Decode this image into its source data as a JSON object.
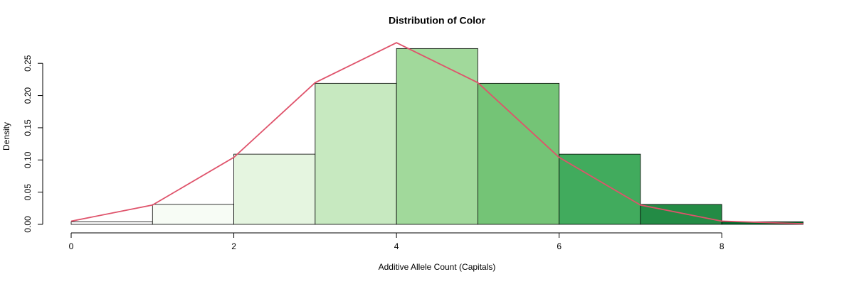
{
  "chart_data": {
    "type": "histogram",
    "title": "Distribution of Color",
    "x_label": "Additive Allele Count (Capitals)",
    "y_label": "Density",
    "bins": [
      0,
      1,
      2,
      3,
      4,
      5,
      6,
      7,
      8,
      9
    ],
    "values": [
      0.004,
      0.031,
      0.109,
      0.219,
      0.273,
      0.219,
      0.109,
      0.031,
      0.004
    ],
    "colors": [
      "#ffffff",
      "#f7fcf5",
      "#e5f5e0",
      "#c7e9c0",
      "#a1d99b",
      "#74c476",
      "#41ab5d",
      "#238b45",
      "#006d2c"
    ],
    "density_line": {
      "x": [
        0,
        1,
        2,
        3,
        4,
        5,
        6,
        7,
        8,
        9
      ],
      "values": [
        0.005,
        0.03,
        0.104,
        0.22,
        0.282,
        0.22,
        0.104,
        0.03,
        0.005,
        0.001
      ],
      "color": "#df536b"
    },
    "xlim": [
      0,
      9
    ],
    "ylim": [
      0,
      0.28
    ],
    "xticks": [
      0,
      2,
      4,
      6,
      8
    ],
    "yticks": [
      {
        "value": 0,
        "label": "0.00"
      },
      {
        "value": 0.05,
        "label": "0.05"
      },
      {
        "value": 0.1,
        "label": "0.10"
      },
      {
        "value": 0.15,
        "label": "0.15"
      },
      {
        "value": 0.2,
        "label": "0.20"
      },
      {
        "value": 0.25,
        "label": "0.25"
      }
    ]
  }
}
